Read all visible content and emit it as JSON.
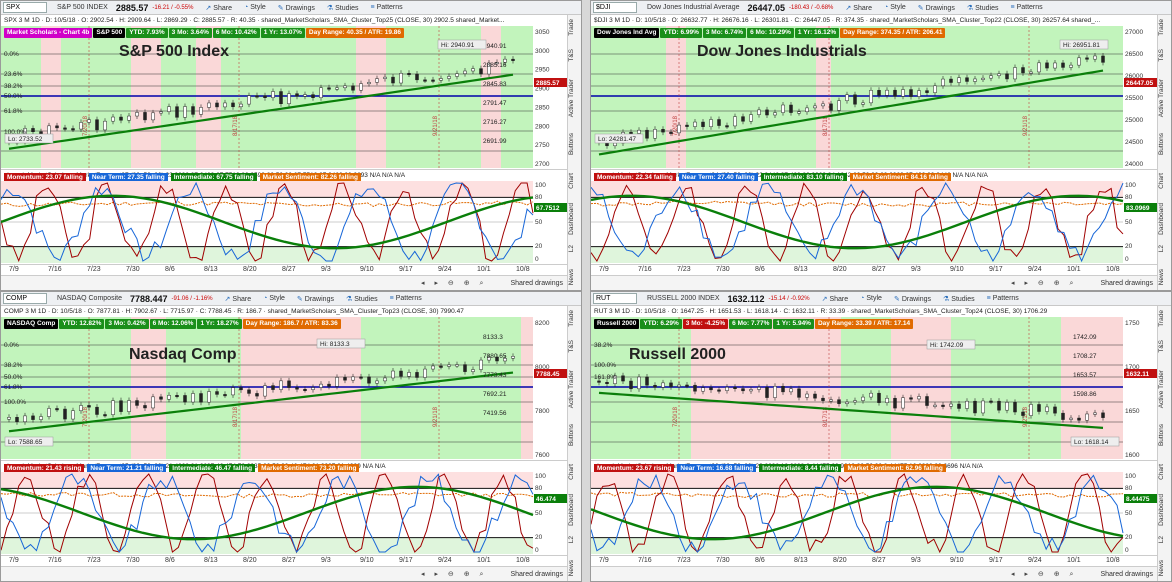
{
  "panels": [
    {
      "symbol": "SPX",
      "name": "S&P 500 INDEX",
      "price": "2885.57",
      "change": "-16.21 / -0.55%",
      "toolbar": {
        "share": "Share",
        "style": "Style",
        "drawings": "Drawings",
        "studies": "Studies",
        "patterns": "Patterns"
      },
      "info": "SPX 3 M 1D  ·  D: 10/5/18  ·  O: 2902.54  ·  H: 2909.64  ·  L: 2869.29  ·  C: 2885.57  ·  R: 40.35  ·  shared_MarketScholars_SMA_Cluster_Top25 (CLOSE, 30)  2902.5  shared_Market...",
      "tags": [
        {
          "text": "Market Scholars - Chart 4b",
          "color": "#d000c8"
        },
        {
          "text": "S&P 500",
          "color": "#000000"
        },
        {
          "text": "YTD: 7.93%",
          "color": "#1a8f1a"
        },
        {
          "text": "3 Mo: 3.64%",
          "color": "#1a8f1a"
        },
        {
          "text": "6 Mo: 10.42%",
          "color": "#1a8f1a"
        },
        {
          "text": "1 Yr: 13.07%",
          "color": "#1a8f1a"
        },
        {
          "text": "Day Range: 40.35 / ATR: 19.86",
          "color": "#e06a00"
        }
      ],
      "title": "S&P 500 Index",
      "hi_label": "Hi: 2940.91",
      "lo_label": "Lo: 2733.52",
      "price_tag": "2885.57",
      "price_tag_color": "#c01010",
      "yticks": [
        "3050",
        "3000",
        "2950",
        "2900",
        "2850",
        "2800",
        "2750",
        "2700"
      ],
      "right_labels": [
        "2940.91",
        "2885.16",
        "2845.83",
        "2791.47",
        "2716.27",
        "2691.99"
      ],
      "fib_labels": [
        "0.0%",
        "23.6%",
        "38.2%",
        "50.0%",
        "61.8%",
        "100.0%"
      ],
      "vlines": [
        "7/20/18",
        "8/17/18",
        "9/21/18"
      ],
      "ind_strip": "shared_MarketScholars_MarketForecast97 (80, 50, 20)  23.0693  27.3462  67.7512  82.2592  80  50  20  67.7512  27.3462  23.0693  N/A  N/A  N/A",
      "ind_tags": [
        {
          "text": "Momentum: 23.07  falling",
          "color": "#c01010"
        },
        {
          "text": "Near Term: 27.35  falling",
          "color": "#1766d8"
        },
        {
          "text": "Intermediate: 67.75  falling",
          "color": "#0a7f0a"
        },
        {
          "text": "Market Sentiment: 82.26  falling",
          "color": "#e06a00"
        }
      ],
      "ind_yticks": [
        "100",
        "80",
        "50",
        "20",
        "0"
      ],
      "ind_value_tag": "67.7512",
      "xlabels": [
        "7/9",
        "7/16",
        "7/23",
        "7/30",
        "8/6",
        "8/13",
        "8/20",
        "8/27",
        "9/3",
        "9/10",
        "9/17",
        "9/24",
        "10/1",
        "10/8"
      ],
      "shared_drawings": "Shared drawings"
    },
    {
      "symbol": "$DJI",
      "name": "Dow Jones Industrial Average",
      "price": "26447.05",
      "change": "-180.43 / -0.68%",
      "toolbar": {
        "share": "Share",
        "style": "Style",
        "drawings": "Drawings",
        "studies": "Studies",
        "patterns": "Patterns"
      },
      "info": "$DJI 3 M 1D  ·  D: 10/5/18  ·  O: 26632.77  ·  H: 26676.16  ·  L: 26301.81  ·  C: 26447.05  ·  R: 374.35  ·  shared_MarketScholars_SMA_Cluster_Top22 (CLOSE, 30)  26257.64  shared_...",
      "tags": [
        {
          "text": "Dow Jones Ind Avg",
          "color": "#000000"
        },
        {
          "text": "YTD: 6.99%",
          "color": "#1a8f1a"
        },
        {
          "text": "3 Mo: 6.74%",
          "color": "#1a8f1a"
        },
        {
          "text": "6 Mo: 10.29%",
          "color": "#1a8f1a"
        },
        {
          "text": "1 Yr: 16.12%",
          "color": "#1a8f1a"
        },
        {
          "text": "Day Range: 374.35 / ATR: 206.41",
          "color": "#e06a00"
        }
      ],
      "title": "Dow Jones Industrials",
      "hi_label": "Hi: 26951.81",
      "lo_label": "Lo: 24281.47",
      "price_tag": "26447.05",
      "price_tag_color": "#c01010",
      "yticks": [
        "27000",
        "26500",
        "26000",
        "25500",
        "25000",
        "24500",
        "24000"
      ],
      "right_labels": [],
      "fib_labels": [],
      "vlines": [
        "7/20/18",
        "8/17/18",
        "9/21/18"
      ],
      "ind_strip": "shared_MarketScholars_MarketForecast94 (80, 50, 20)  22.3446  27.402  83.0969  84.1642  80  50  20  83.0969  27.402  22.3446  N/A  N/A  N/A",
      "ind_tags": [
        {
          "text": "Momentum: 22.34  falling",
          "color": "#c01010"
        },
        {
          "text": "Near Term: 27.40  falling",
          "color": "#1766d8"
        },
        {
          "text": "Intermediate: 83.10  falling",
          "color": "#0a7f0a"
        },
        {
          "text": "Market Sentiment: 84.16  falling",
          "color": "#e06a00"
        }
      ],
      "ind_yticks": [
        "100",
        "80",
        "50",
        "20",
        "0"
      ],
      "ind_value_tag": "83.0969",
      "xlabels": [
        "7/9",
        "7/16",
        "7/23",
        "7/30",
        "8/6",
        "8/13",
        "8/20",
        "8/27",
        "9/3",
        "9/10",
        "9/17",
        "9/24",
        "10/1",
        "10/8"
      ],
      "shared_drawings": "Shared drawings"
    },
    {
      "symbol": "COMP",
      "name": "NASDAQ Composite",
      "price": "7788.447",
      "change": "-91.06 / -1.16%",
      "toolbar": {
        "share": "Share",
        "style": "Style",
        "drawings": "Drawings",
        "studies": "Studies",
        "patterns": "Patterns"
      },
      "info": "COMP 3 M 1D  ·  D: 10/5/18  ·  O: 7877.81  ·  H: 7902.67  ·  L: 7715.97  ·  C: 7788.45  ·  R: 186.7  ·  shared_MarketScholars_SMA_Cluster_Top23 (CLOSE, 30)  7990.47",
      "tags": [
        {
          "text": "NASDAQ Comp",
          "color": "#000000"
        },
        {
          "text": "YTD: 12.82%",
          "color": "#1a8f1a"
        },
        {
          "text": "3 Mo: 0.42%",
          "color": "#1a8f1a"
        },
        {
          "text": "6 Mo: 12.06%",
          "color": "#1a8f1a"
        },
        {
          "text": "1 Yr: 18.27%",
          "color": "#1a8f1a"
        },
        {
          "text": "Day Range: 186.7 / ATR: 83.36",
          "color": "#e06a00"
        }
      ],
      "title": "Nasdaq Comp",
      "hi_label": "Hi: 8133.3",
      "lo_label": "Lo: 7588.65",
      "price_tag": "7788.45",
      "price_tag_color": "#c01010",
      "yticks": [
        "8200",
        "8000",
        "7800",
        "7600"
      ],
      "right_labels": [
        "8133.3",
        "7880.65",
        "7773.43",
        "7692.21",
        "7419.56"
      ],
      "fib_labels": [
        "0.0%",
        "38.2%",
        "50.0%",
        "61.8%",
        "100.0%"
      ],
      "vlines": [
        "7/20/18",
        "8/17/18",
        "9/21/18"
      ],
      "ind_strip": "shared_MarketScholars_MarketForecast95 (80, 50, 20)  21.4309  21.2097  46.474  73.2035  80  50  20  46.474  21.2097  21.4309  N/A  N/A",
      "ind_tags": [
        {
          "text": "Momentum: 21.43  rising",
          "color": "#c01010"
        },
        {
          "text": "Near Term: 21.21  falling",
          "color": "#1766d8"
        },
        {
          "text": "Intermediate: 46.47  falling",
          "color": "#0a7f0a"
        },
        {
          "text": "Market Sentiment: 73.20  falling",
          "color": "#e06a00"
        }
      ],
      "ind_yticks": [
        "100",
        "80",
        "50",
        "20",
        "0"
      ],
      "ind_value_tag": "46.474",
      "xlabels": [
        "7/9",
        "7/16",
        "7/23",
        "7/30",
        "8/6",
        "8/13",
        "8/20",
        "8/27",
        "9/3",
        "9/10",
        "9/17",
        "9/24",
        "10/1",
        "10/8"
      ],
      "shared_drawings": "Shared drawings"
    },
    {
      "symbol": "RUT",
      "name": "RUSSELL 2000 INDEX",
      "price": "1632.112",
      "change": "-15.14 / -0.92%",
      "toolbar": {
        "share": "Share",
        "style": "Style",
        "drawings": "Drawings",
        "studies": "Studies",
        "patterns": "Patterns"
      },
      "info": "RUT 3 M 1D  ·  D: 10/5/18  ·  O: 1647.25  ·  H: 1651.53  ·  L: 1618.14  ·  C: 1632.11  ·  R: 33.39  ·  shared_MarketScholars_SMA_Cluster_Top24 (CLOSE, 30)  1706.29",
      "tags": [
        {
          "text": "Russell 2000",
          "color": "#000000"
        },
        {
          "text": "YTD: 6.29%",
          "color": "#1a8f1a"
        },
        {
          "text": "3 Mo: -4.25%",
          "color": "#c01010"
        },
        {
          "text": "6 Mo: 7.77%",
          "color": "#1a8f1a"
        },
        {
          "text": "1 Yr: 5.94%",
          "color": "#1a8f1a"
        },
        {
          "text": "Day Range: 33.39 / ATR: 17.14",
          "color": "#e06a00"
        }
      ],
      "title": "Russell 2000",
      "hi_label": "Hi: 1742.09",
      "lo_label": "Lo: 1618.14",
      "price_tag": "1632.11",
      "price_tag_color": "#c01010",
      "yticks": [
        "1750",
        "1700",
        "1650",
        "1600"
      ],
      "right_labels": [
        "1742.09",
        "1708.27",
        "1653.57",
        "1598.86"
      ],
      "fib_labels": [
        "38.2%",
        "100.0%",
        "161.8%"
      ],
      "vlines": [
        "7/20/18",
        "8/17/18",
        "9/21/18"
      ],
      "ind_strip": "shared_MarketScholars_MarketForecast96 (80, 50, 20)  23.6696  16.6828  8.44475  62.9613  80  50  20  8.44475  16.6828  23.6696  N/A  N/A",
      "ind_tags": [
        {
          "text": "Momentum: 23.67  rising",
          "color": "#c01010"
        },
        {
          "text": "Near Term: 16.68  falling",
          "color": "#1766d8"
        },
        {
          "text": "Intermediate: 8.44  falling",
          "color": "#0a7f0a"
        },
        {
          "text": "Market Sentiment: 62.96  falling",
          "color": "#e06a00"
        }
      ],
      "ind_yticks": [
        "100",
        "80",
        "50",
        "20",
        "0"
      ],
      "ind_value_tag": "8.44475",
      "xlabels": [
        "7/9",
        "7/16",
        "7/23",
        "7/30",
        "8/6",
        "8/13",
        "8/20",
        "8/27",
        "9/3",
        "9/10",
        "9/17",
        "9/24",
        "10/1",
        "10/8"
      ],
      "shared_drawings": "Shared drawings"
    }
  ],
  "sidebar_tabs": [
    "Trade",
    "T&S",
    "Active Trader",
    "Buttons",
    "Chart",
    "Dashboard",
    "L2",
    "News"
  ],
  "colors": {
    "green_zone": "#a8f0a0",
    "red_zone": "#f8c8c8",
    "sma": "#0a7f0a",
    "momentum": "#a00000",
    "near_term": "#1766d8",
    "sentiment": "#e06a00"
  }
}
